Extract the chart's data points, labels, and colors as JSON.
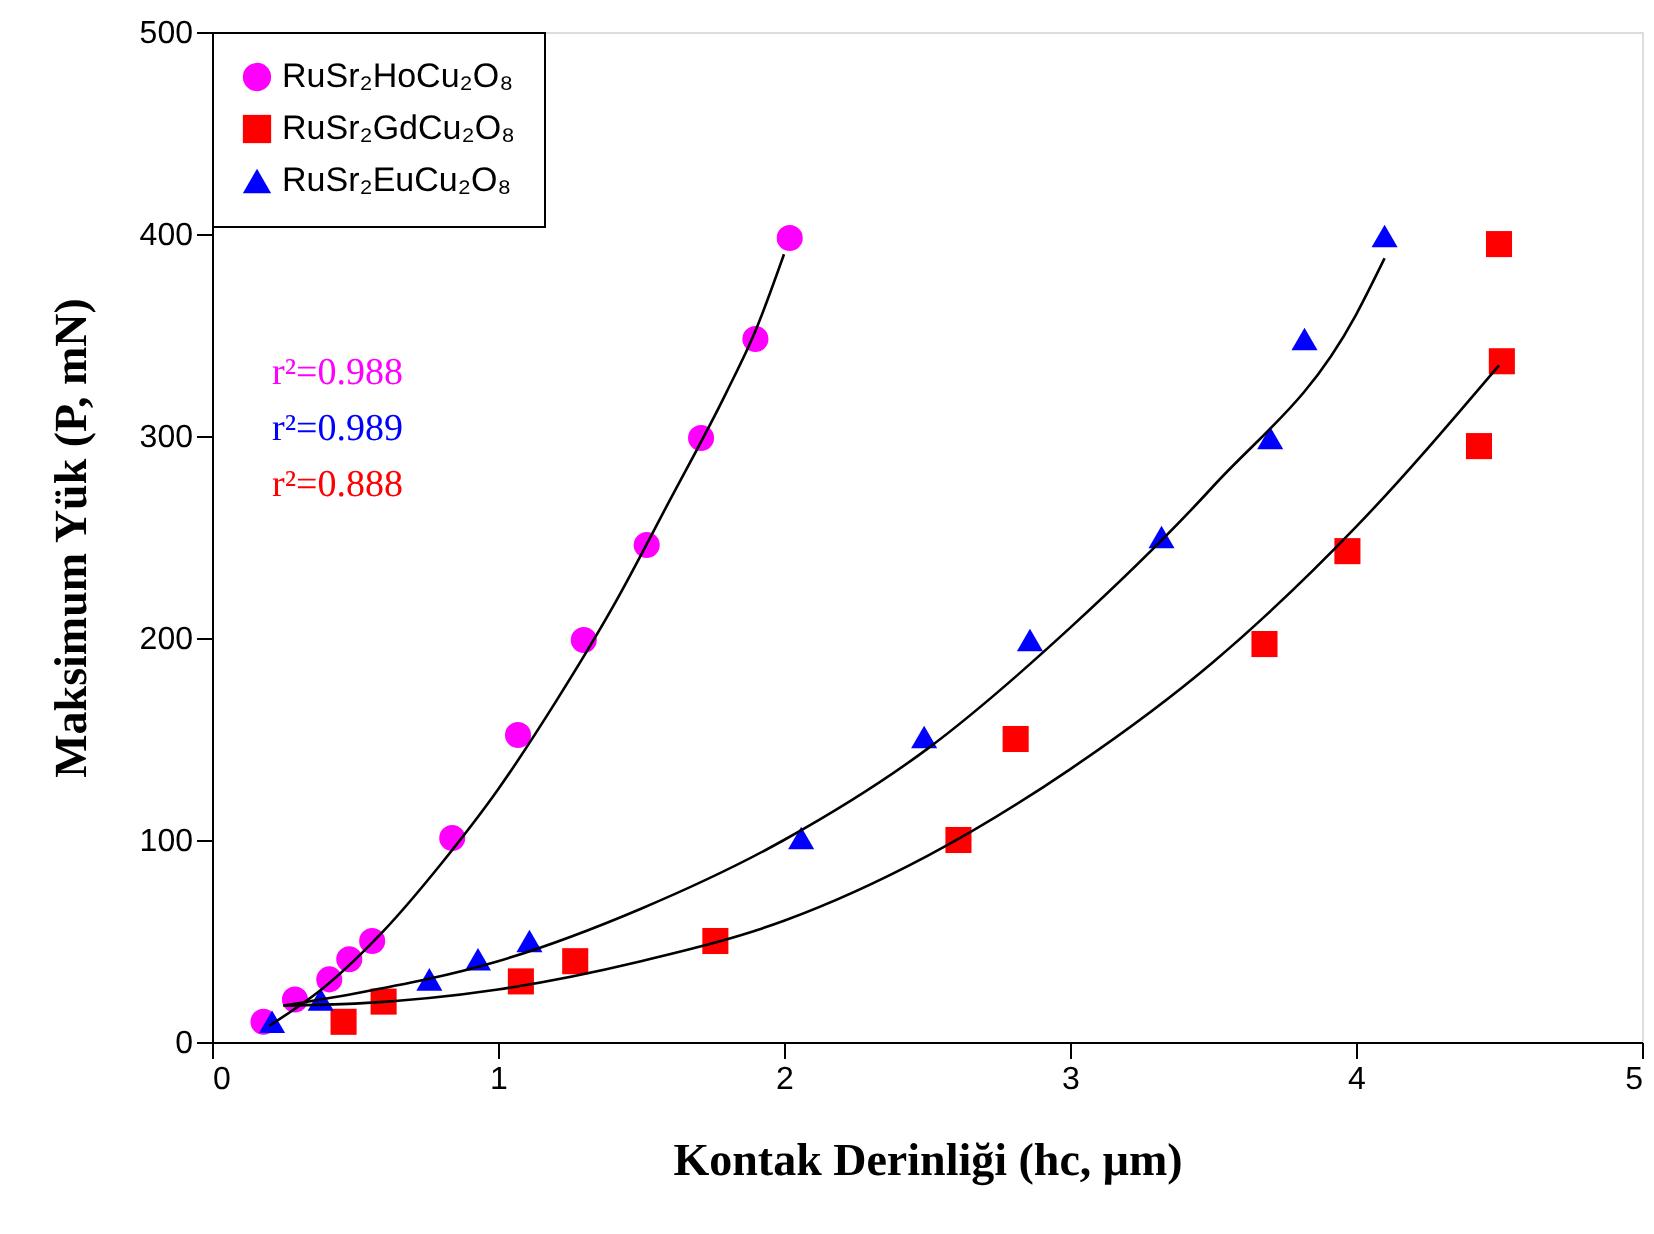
{
  "chart_data": {
    "type": "scatter",
    "xlabel": "Kontak Derinliği (hc, μm)",
    "ylabel": "Maksimum Yük (P, mN)",
    "xlim": [
      0,
      5
    ],
    "xticks": [
      0,
      1,
      2,
      3,
      4,
      5
    ],
    "ylim": [
      0,
      500
    ],
    "yticks": [
      0,
      100,
      200,
      300,
      400,
      500
    ],
    "grid": false,
    "legend": "top left",
    "annotations": [
      "r²=0.988",
      "r²=0.989",
      "r²=0.888"
    ],
    "series": [
      {
        "name": "RuSr₂HoCu₂O₈",
        "color": "#ff00ff",
        "marker": "circle",
        "x": [
          0.18,
          0.29,
          0.41,
          0.48,
          0.56,
          0.84,
          1.07,
          1.3,
          1.52,
          1.71,
          1.9,
          2.02
        ],
        "values": [
          10,
          21,
          31,
          41,
          50,
          101,
          152,
          199,
          246,
          299,
          348,
          398
        ]
      },
      {
        "name": "RuSr₂GdCu₂O₈",
        "color": "#ff0000",
        "marker": "square",
        "x": [
          0.46,
          0.6,
          1.08,
          1.27,
          1.76,
          2.61,
          2.81,
          3.68,
          3.97,
          4.43,
          4.51,
          4.5
        ],
        "values": [
          10,
          20,
          30,
          40,
          50,
          100,
          150,
          197,
          243,
          295,
          337,
          395
        ]
      },
      {
        "name": "RuSr₂EuCu₂O₈",
        "color": "#0000ff",
        "marker": "triangle",
        "x": [
          0.21,
          0.38,
          0.76,
          0.93,
          1.11,
          2.06,
          2.49,
          2.86,
          3.32,
          3.7,
          3.82,
          4.1
        ],
        "values": [
          10,
          21,
          31,
          41,
          50,
          101,
          151,
          199,
          250,
          299,
          348,
          399
        ]
      },
      {
        "type": "line",
        "color": "#000000",
        "x": [
          0.2,
          0.4,
          0.6,
          0.8,
          1.0,
          1.2,
          1.4,
          1.6,
          1.8,
          1.9,
          2.0
        ],
        "values": [
          8,
          28,
          55,
          88,
          125,
          168,
          215,
          268,
          322,
          352,
          390
        ]
      },
      {
        "type": "line",
        "color": "#000000",
        "x": [
          0.25,
          0.5,
          1.0,
          1.5,
          2.0,
          2.5,
          3.0,
          3.5,
          4.0,
          4.5
        ],
        "values": [
          18,
          19,
          26,
          40,
          60,
          92,
          135,
          188,
          255,
          335
        ]
      },
      {
        "type": "line",
        "color": "#000000",
        "x": [
          0.25,
          0.5,
          1.0,
          1.5,
          2.0,
          2.5,
          3.0,
          3.5,
          4.0,
          4.1
        ],
        "values": [
          18,
          24,
          40,
          66,
          100,
          145,
          205,
          275,
          360,
          388
        ]
      }
    ]
  }
}
